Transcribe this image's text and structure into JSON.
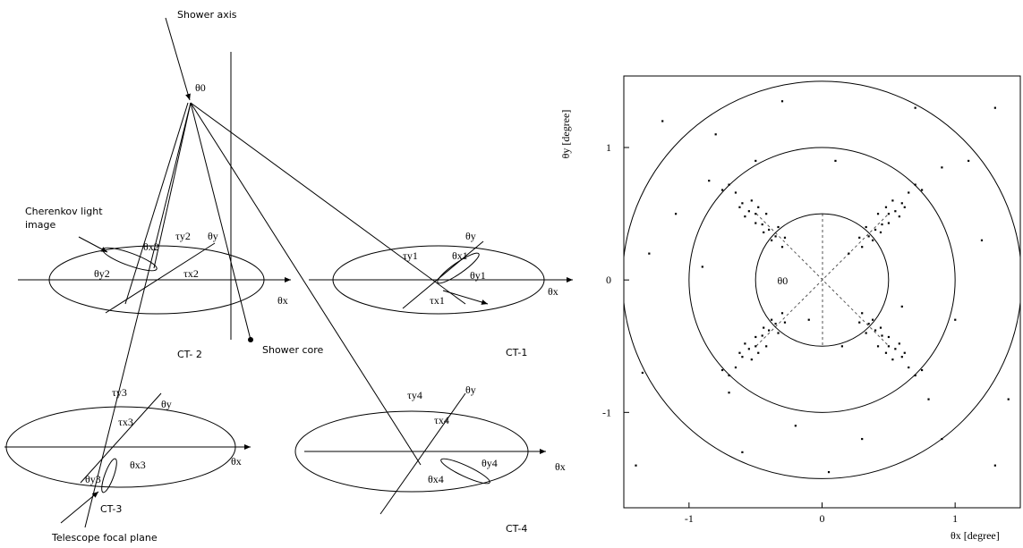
{
  "diagram": {
    "labels": [
      "Shower axis",
      "θ0",
      "Cherenkov light",
      "image",
      "θx2",
      "τy2",
      "θy",
      "θy2",
      "τx2",
      "θx",
      "CT- 2",
      "Shower core",
      "CT-1",
      "θy",
      "τy1",
      "θx1",
      "θy1",
      "τx1",
      "θx",
      "τy3",
      "θy",
      "τx3",
      "θx",
      "θy3",
      "θx3",
      "CT-3",
      "Telescope focal plane",
      "τy4",
      "θy",
      "τx4",
      "θy4",
      "θx4",
      "θx",
      "CT-4"
    ]
  },
  "chart_data": {
    "type": "scatter",
    "x_label": "θx [degree]",
    "y_label": "θy [degree]",
    "annotation": "θ0",
    "xlim": [
      -1.49,
      1.49
    ],
    "ylim": [
      -1.72,
      1.54
    ],
    "xticks": [
      -1,
      0,
      1
    ],
    "yticks": [
      -1,
      0,
      1
    ],
    "circle_radii": [
      0.5,
      1,
      1.5
    ],
    "color": "#000000",
    "x": [
      0.3,
      0.35,
      0.4,
      0.45,
      0.5,
      0.55,
      0.6,
      0.42,
      0.5,
      0.65,
      0.38,
      0.48,
      0.58,
      0.7,
      0.33,
      0.53,
      0.62,
      0.44,
      0.75,
      0.28,
      -0.3,
      -0.35,
      -0.4,
      -0.45,
      -0.5,
      -0.55,
      -0.6,
      -0.42,
      -0.5,
      -0.65,
      -0.38,
      -0.48,
      -0.58,
      -0.7,
      -0.33,
      -0.53,
      -0.62,
      -0.44,
      -0.75,
      -0.28,
      -0.3,
      -0.35,
      -0.4,
      -0.45,
      -0.5,
      -0.55,
      -0.6,
      -0.42,
      -0.5,
      -0.65,
      -0.38,
      -0.48,
      -0.58,
      -0.7,
      -0.33,
      -0.53,
      -0.62,
      -0.44,
      -0.75,
      -0.28,
      0.3,
      0.35,
      0.4,
      0.45,
      0.5,
      0.55,
      0.6,
      0.42,
      0.5,
      0.65,
      0.38,
      0.48,
      0.58,
      0.7,
      0.33,
      0.53,
      0.62,
      0.44,
      0.75,
      0.28,
      1.2,
      -1.1,
      0.9,
      -0.8,
      1.3,
      -1.35,
      0.1,
      -0.2,
      1.0,
      -0.6,
      0.2,
      -0.1,
      0.15,
      -0.9,
      1.1,
      -1.2,
      0.7,
      -0.3,
      1.4,
      -1.4,
      0.05,
      0.8,
      -0.7,
      -0.85,
      0.9,
      1.3,
      -1.3,
      0.3,
      -0.5,
      0.6
    ],
    "values": [
      0.25,
      0.33,
      0.38,
      0.42,
      0.5,
      0.52,
      0.58,
      0.5,
      0.43,
      0.66,
      0.3,
      0.55,
      0.48,
      0.72,
      0.4,
      0.6,
      0.55,
      0.36,
      0.68,
      0.32,
      0.25,
      0.33,
      0.38,
      0.42,
      0.5,
      0.52,
      0.58,
      0.5,
      0.43,
      0.66,
      0.3,
      0.55,
      0.48,
      0.72,
      0.4,
      0.6,
      0.55,
      0.36,
      0.68,
      0.32,
      -0.25,
      -0.33,
      -0.38,
      -0.42,
      -0.5,
      -0.52,
      -0.58,
      -0.5,
      -0.43,
      -0.66,
      -0.3,
      -0.55,
      -0.48,
      -0.72,
      -0.4,
      -0.6,
      -0.55,
      -0.36,
      -0.68,
      -0.32,
      -0.25,
      -0.33,
      -0.38,
      -0.42,
      -0.5,
      -0.52,
      -0.58,
      -0.5,
      -0.43,
      -0.66,
      -0.3,
      -0.55,
      -0.48,
      -0.72,
      -0.4,
      -0.6,
      -0.55,
      -0.36,
      -0.68,
      -0.32,
      0.3,
      0.5,
      -1.2,
      1.1,
      1.3,
      -0.7,
      0.9,
      -1.1,
      -0.3,
      -1.3,
      0.2,
      -0.3,
      -0.5,
      0.1,
      0.9,
      1.2,
      1.3,
      1.35,
      -0.9,
      -1.4,
      -1.45,
      -0.9,
      -0.85,
      0.75,
      0.85,
      -1.4,
      0.2,
      -1.2,
      0.9,
      -0.2
    ]
  }
}
